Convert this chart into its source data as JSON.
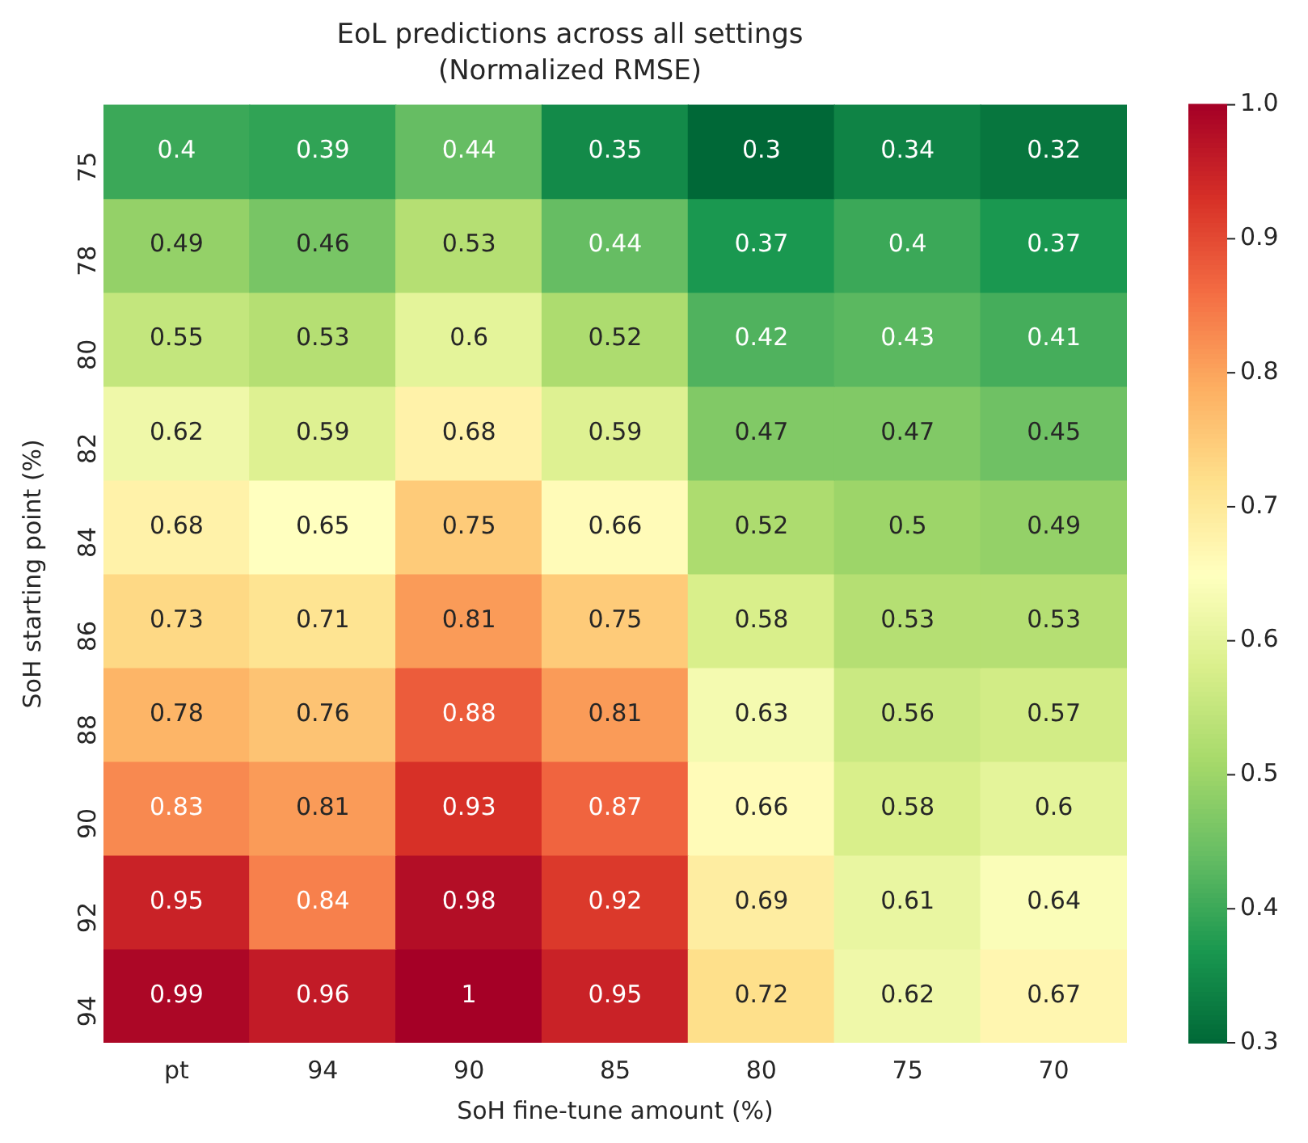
{
  "chart_data": {
    "type": "heatmap",
    "title": "EoL predictions across all settings",
    "subtitle": "(Normalized RMSE)",
    "xlabel": "SoH fine-tune amount (%)",
    "ylabel": "SoH starting point (%)",
    "categories": [
      "pt",
      "94",
      "90",
      "85",
      "80",
      "75",
      "70"
    ],
    "y_categories": [
      "75",
      "78",
      "80",
      "82",
      "84",
      "86",
      "88",
      "90",
      "92",
      "94"
    ],
    "cells": [
      [
        0.4,
        0.39,
        0.44,
        0.35,
        0.3,
        0.34,
        0.32
      ],
      [
        0.49,
        0.46,
        0.53,
        0.44,
        0.37,
        0.4,
        0.37
      ],
      [
        0.55,
        0.53,
        0.6,
        0.52,
        0.42,
        0.43,
        0.41
      ],
      [
        0.62,
        0.59,
        0.68,
        0.59,
        0.47,
        0.47,
        0.45
      ],
      [
        0.68,
        0.65,
        0.75,
        0.66,
        0.52,
        0.5,
        0.49
      ],
      [
        0.73,
        0.71,
        0.81,
        0.75,
        0.58,
        0.53,
        0.53
      ],
      [
        0.78,
        0.76,
        0.88,
        0.81,
        0.63,
        0.56,
        0.57
      ],
      [
        0.83,
        0.81,
        0.93,
        0.87,
        0.66,
        0.58,
        0.6
      ],
      [
        0.95,
        0.84,
        0.98,
        0.92,
        0.69,
        0.61,
        0.64
      ],
      [
        0.99,
        0.96,
        1,
        0.95,
        0.72,
        0.62,
        0.67
      ]
    ],
    "data_labels": true,
    "clim": [
      0.3,
      1.0
    ],
    "cticks": [
      0.3,
      0.4,
      0.5,
      0.6,
      0.7,
      0.8,
      0.9,
      {
        "value": 1,
        "label": "1.0"
      }
    ]
  }
}
